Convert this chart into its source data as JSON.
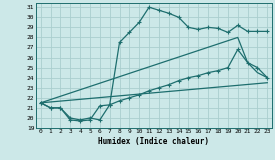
{
  "xlabel": "Humidex (Indice chaleur)",
  "bg_color": "#cce8e8",
  "grid_color": "#aacece",
  "line_color": "#1e6e6e",
  "xmin": -0.5,
  "xmax": 23.5,
  "ymin": 19,
  "ymax": 31.4,
  "yticks": [
    19,
    20,
    21,
    22,
    23,
    24,
    25,
    26,
    27,
    28,
    29,
    30,
    31
  ],
  "xticks": [
    0,
    1,
    2,
    3,
    4,
    5,
    6,
    7,
    8,
    9,
    10,
    11,
    12,
    13,
    14,
    15,
    16,
    17,
    18,
    19,
    20,
    21,
    22,
    23
  ],
  "main_x": [
    0,
    1,
    2,
    3,
    4,
    5,
    6,
    7,
    8,
    9,
    10,
    11,
    12,
    13,
    14,
    15,
    16,
    17,
    18,
    19,
    20,
    21,
    22,
    23
  ],
  "main_y": [
    21.5,
    21.0,
    21.0,
    20.0,
    19.8,
    20.0,
    19.8,
    21.3,
    27.5,
    28.5,
    29.5,
    31.0,
    30.7,
    30.4,
    30.0,
    29.0,
    28.8,
    29.0,
    28.9,
    28.5,
    29.2,
    28.6,
    28.6,
    28.6
  ],
  "line2_x": [
    0,
    1,
    2,
    3,
    4,
    5,
    6,
    7,
    8,
    9,
    10,
    11,
    12,
    13,
    14,
    15,
    16,
    17,
    18,
    19,
    20,
    21,
    22,
    23
  ],
  "line2_y": [
    21.5,
    21.0,
    21.0,
    19.8,
    19.7,
    19.8,
    21.2,
    21.3,
    21.7,
    22.0,
    22.3,
    22.7,
    23.0,
    23.3,
    23.7,
    24.0,
    24.2,
    24.5,
    24.7,
    25.0,
    26.8,
    25.5,
    25.0,
    24.0
  ],
  "line3_x": [
    0,
    23
  ],
  "line3_y": [
    21.5,
    23.5
  ],
  "line4_x": [
    0,
    20,
    21,
    22,
    23
  ],
  "line4_y": [
    21.5,
    28.0,
    25.5,
    24.5,
    24.0
  ]
}
